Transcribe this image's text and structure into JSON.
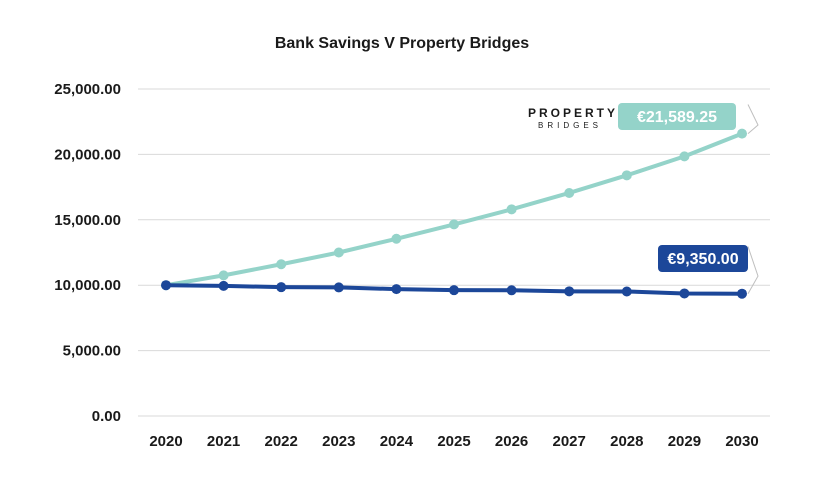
{
  "chart_data": {
    "type": "line",
    "title": "Bank Savings V Property Bridges",
    "categories": [
      "2020",
      "2021",
      "2022",
      "2023",
      "2024",
      "2025",
      "2026",
      "2027",
      "2028",
      "2029",
      "2030"
    ],
    "ylim": [
      0,
      25000
    ],
    "yticks": [
      0,
      5000,
      10000,
      15000,
      20000,
      25000
    ],
    "ytick_labels": [
      "0.00",
      "5,000.00",
      "10,000.00",
      "15,000.00",
      "20,000.00",
      "25,000.00"
    ],
    "grid": true,
    "series": [
      {
        "name": "Property Bridges",
        "color": "#94d3c9",
        "values": [
          10000,
          10750,
          11600,
          12500,
          13550,
          14650,
          15800,
          17050,
          18400,
          19850,
          21589.25
        ],
        "callout": "€21,589.25"
      },
      {
        "name": "Bank Savings",
        "color": "#1c4799",
        "values": [
          10000,
          9950,
          9850,
          9830,
          9700,
          9620,
          9610,
          9530,
          9520,
          9370,
          9350
        ],
        "callout": "€9,350.00"
      }
    ],
    "logo": {
      "main": "PROPERTY",
      "sub": "BRIDGES"
    }
  }
}
